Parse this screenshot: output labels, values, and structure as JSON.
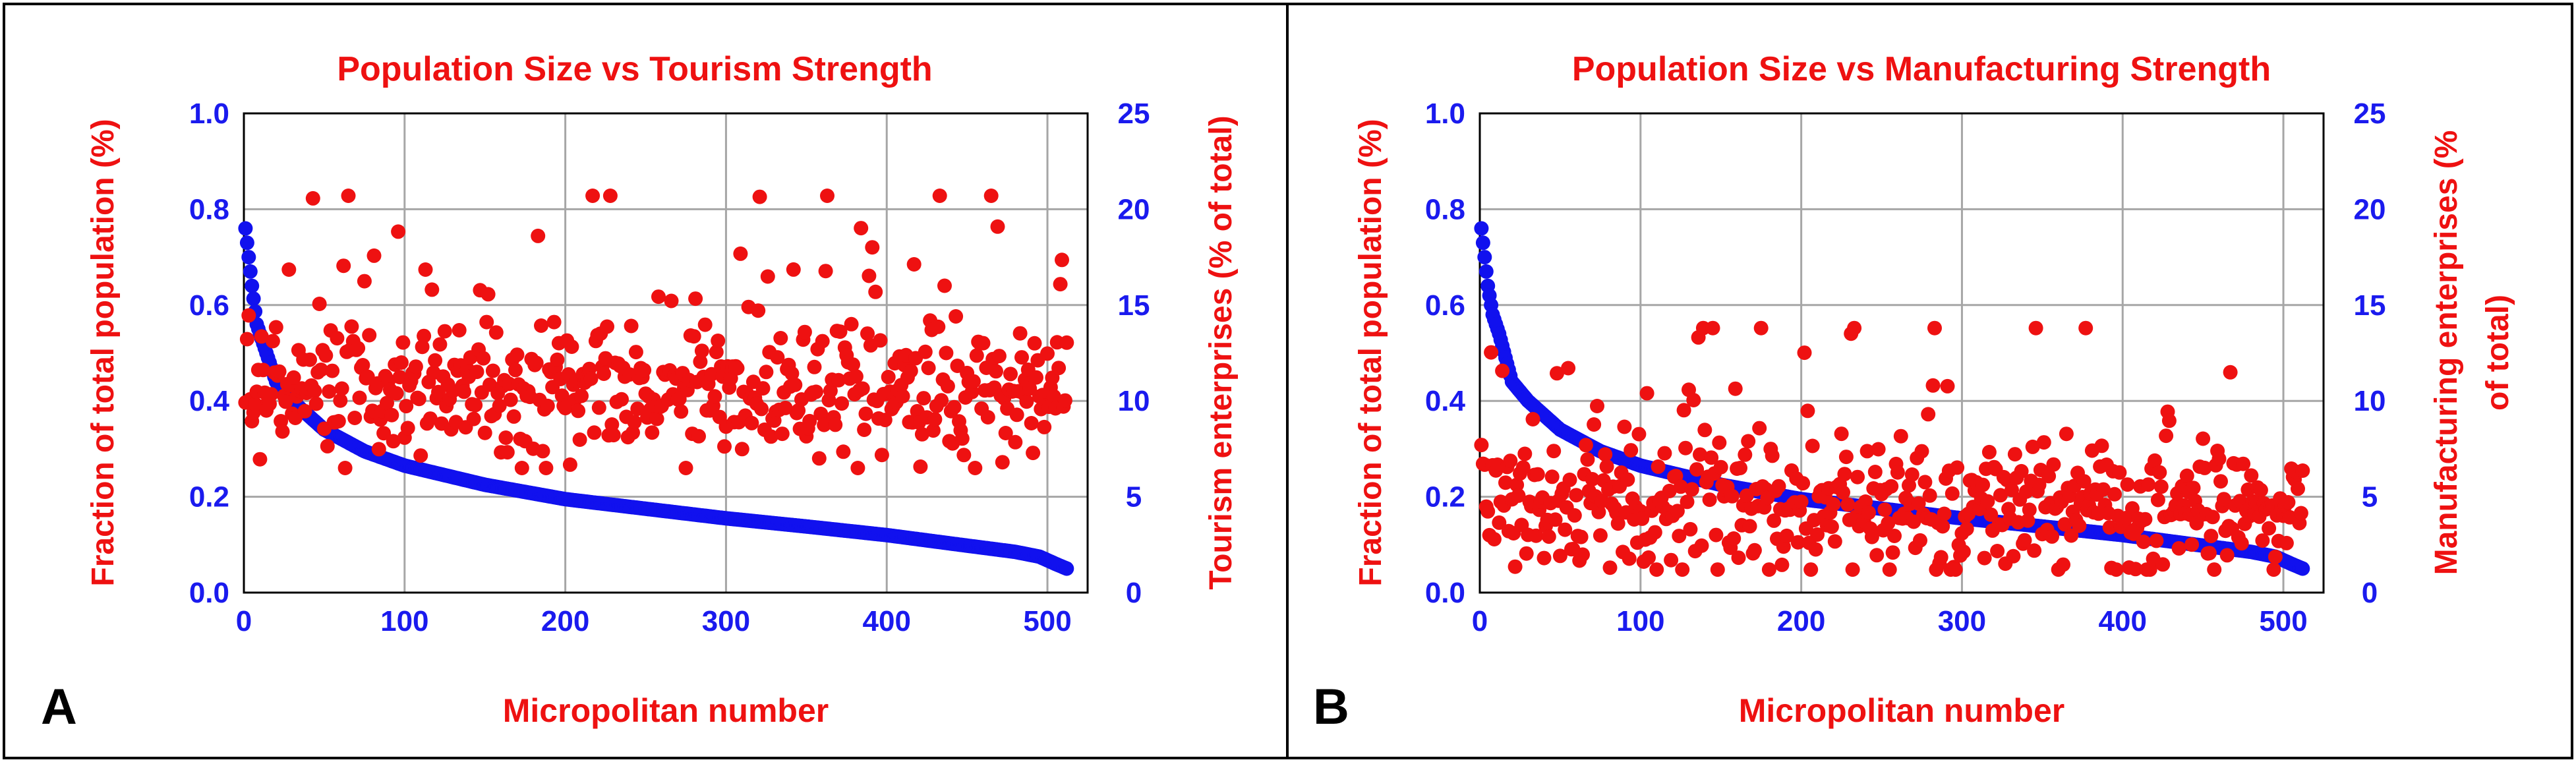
{
  "colors": {
    "axis_left": "#1a1aee",
    "axis_right": "#ee1111",
    "title": "#ee1111",
    "grid": "#a6a6a6",
    "border": "#000000",
    "blue_series": "#1111ee",
    "red_series": "#ee1111"
  },
  "chart_data": [
    {
      "type": "scatter",
      "panel_label": "A",
      "title": "Population Size vs Tourism Strength",
      "xlabel": "Micropolitan number",
      "ylabel_left": "Fraction of total population (%)",
      "ylabel_right": "Tourism enterprises (% of total)",
      "xlim": [
        0,
        525
      ],
      "ylim_left": [
        0,
        1.0
      ],
      "ylim_right": [
        0,
        25
      ],
      "x_ticks": [
        "0",
        "100",
        "200",
        "300",
        "400",
        "500"
      ],
      "y_left_ticks": [
        "0.0",
        "0.2",
        "0.4",
        "0.6",
        "0.8",
        "1.0"
      ],
      "y_right_ticks": [
        "0",
        "5",
        "10",
        "15",
        "20",
        "25"
      ],
      "grid": true,
      "series": [
        {
          "name": "Fraction of total population (%)",
          "axis": "left",
          "color": "blue",
          "curve_anchors": [
            [
              1,
              0.76
            ],
            [
              3,
              0.7
            ],
            [
              5,
              0.64
            ],
            [
              8,
              0.56
            ],
            [
              12,
              0.52
            ],
            [
              20,
              0.44
            ],
            [
              30,
              0.4
            ],
            [
              50,
              0.34
            ],
            [
              75,
              0.295
            ],
            [
              100,
              0.265
            ],
            [
              150,
              0.225
            ],
            [
              200,
              0.195
            ],
            [
              250,
              0.175
            ],
            [
              300,
              0.155
            ],
            [
              350,
              0.138
            ],
            [
              400,
              0.12
            ],
            [
              450,
              0.098
            ],
            [
              480,
              0.085
            ],
            [
              495,
              0.075
            ],
            [
              505,
              0.06
            ],
            [
              512,
              0.05
            ]
          ],
          "n_points": 512
        },
        {
          "name": "Tourism enterprises (% of total)",
          "axis": "right",
          "color": "red",
          "n_points": 512,
          "x_range": [
            1,
            512
          ],
          "typical_value": 10.5,
          "spread": 1.8,
          "min_value": 6.5,
          "max_value": 20.7,
          "seed": 7
        }
      ]
    },
    {
      "type": "scatter",
      "panel_label": "B",
      "title": "Population Size vs Manufacturing Strength",
      "xlabel": "Micropolitan number",
      "ylabel_left": "Fraction of total population (%)",
      "ylabel_right": "Manufacturing enterprises (% of total)",
      "ylabel_right_lines": [
        "Manufacturing enterprises (%",
        "of total)"
      ],
      "xlim": [
        0,
        525
      ],
      "ylim_left": [
        0,
        1.0
      ],
      "ylim_right": [
        0,
        25
      ],
      "x_ticks": [
        "0",
        "100",
        "200",
        "300",
        "400",
        "500"
      ],
      "y_left_ticks": [
        "0.0",
        "0.2",
        "0.4",
        "0.6",
        "0.8",
        "1.0"
      ],
      "y_right_ticks": [
        "0",
        "5",
        "10",
        "15",
        "20",
        "25"
      ],
      "grid": true,
      "series": [
        {
          "name": "Fraction of total population (%)",
          "axis": "left",
          "color": "blue",
          "curve_anchors": [
            [
              1,
              0.76
            ],
            [
              3,
              0.7
            ],
            [
              5,
              0.64
            ],
            [
              8,
              0.58
            ],
            [
              12,
              0.54
            ],
            [
              20,
              0.44
            ],
            [
              30,
              0.4
            ],
            [
              50,
              0.34
            ],
            [
              75,
              0.295
            ],
            [
              100,
              0.265
            ],
            [
              150,
              0.225
            ],
            [
              200,
              0.195
            ],
            [
              250,
              0.175
            ],
            [
              300,
              0.155
            ],
            [
              350,
              0.138
            ],
            [
              400,
              0.12
            ],
            [
              450,
              0.098
            ],
            [
              480,
              0.085
            ],
            [
              495,
              0.075
            ],
            [
              505,
              0.06
            ],
            [
              512,
              0.05
            ]
          ],
          "n_points": 512
        },
        {
          "name": "Manufacturing enterprises (% of total)",
          "axis": "right",
          "color": "red",
          "n_points": 512,
          "x_range": [
            1,
            512
          ],
          "typical_value": 4.5,
          "spread": 1.9,
          "min_value": 1.2,
          "max_value": 13.8,
          "seed": 19
        }
      ]
    }
  ]
}
